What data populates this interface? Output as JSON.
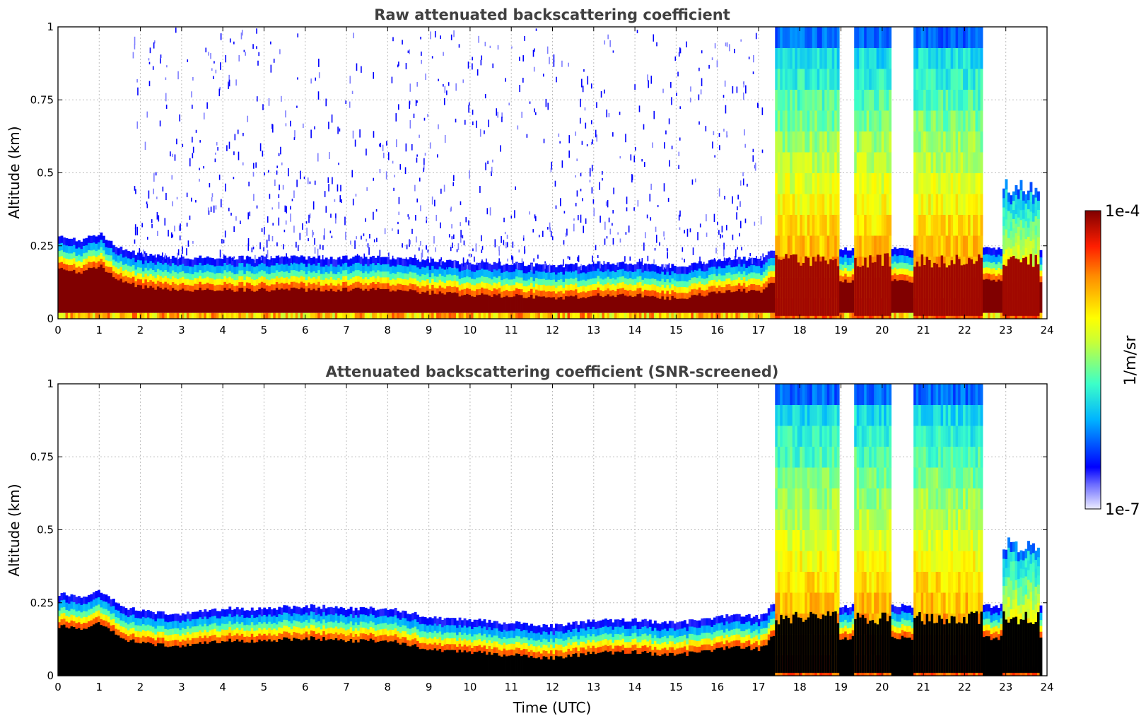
{
  "colors": {
    "scale": [
      "#ececff",
      "#0000ff",
      "#00c8ff",
      "#7dff7a",
      "#ffff00",
      "#ff7f00",
      "#e00000",
      "#800000"
    ],
    "masked": "#000000",
    "grid": "#bdbdbd"
  },
  "chart_data": [
    {
      "type": "heatmap",
      "title": "Raw attenuated backscattering coefficient",
      "xlabel": "",
      "ylabel": "Altitude (km)",
      "xlim": [
        0,
        24
      ],
      "ylim": [
        0,
        1
      ],
      "xticks": [
        "0",
        "1",
        "2",
        "3",
        "4",
        "5",
        "6",
        "7",
        "8",
        "9",
        "10",
        "11",
        "12",
        "13",
        "14",
        "15",
        "16",
        "17",
        "18",
        "19",
        "20",
        "21",
        "22",
        "23",
        "24"
      ],
      "yticks": [
        "0",
        "0.25",
        "0.5",
        "0.75",
        "1"
      ],
      "grid": true,
      "colormap": "jet",
      "scale": "log",
      "clim": [
        "1e-7",
        "1e-4"
      ],
      "unit": "1/m/sr",
      "boundary_layer_top_km": {
        "time_utc": [
          0,
          0.5,
          1.0,
          1.5,
          2,
          3,
          4,
          5,
          6,
          7,
          8,
          9,
          10,
          11,
          12,
          13,
          14,
          15,
          16,
          16.5,
          17,
          17.3
        ],
        "altitude_km": [
          0.28,
          0.27,
          0.29,
          0.24,
          0.22,
          0.21,
          0.21,
          0.21,
          0.21,
          0.21,
          0.21,
          0.2,
          0.19,
          0.19,
          0.18,
          0.19,
          0.19,
          0.18,
          0.2,
          0.21,
          0.2,
          0.24
        ]
      },
      "cloud_columns": [
        {
          "time_utc": [
            17.4,
            18.9
          ],
          "top_km": 1.0
        },
        {
          "time_utc": [
            19.3,
            20.2
          ],
          "top_km": 1.0
        },
        {
          "time_utc": [
            20.7,
            22.4
          ],
          "top_km": 1.0
        },
        {
          "time_utc": [
            22.9,
            23.8
          ],
          "top_km": 0.45
        }
      ],
      "noise": true
    },
    {
      "type": "heatmap",
      "title": "Attenuated backscattering coefficient (SNR-screened)",
      "xlabel": "Time (UTC)",
      "ylabel": "Altitude (km)",
      "xlim": [
        0,
        24
      ],
      "ylim": [
        0,
        1
      ],
      "xticks": [
        "0",
        "1",
        "2",
        "3",
        "4",
        "5",
        "6",
        "7",
        "8",
        "9",
        "10",
        "11",
        "12",
        "13",
        "14",
        "15",
        "16",
        "17",
        "18",
        "19",
        "20",
        "21",
        "22",
        "23",
        "24"
      ],
      "yticks": [
        "0",
        "0.25",
        "0.5",
        "0.75",
        "1"
      ],
      "grid": true,
      "colormap": "jet",
      "scale": "log",
      "clim": [
        "1e-7",
        "1e-4"
      ],
      "unit": "1/m/sr",
      "boundary_layer_top_km": {
        "time_utc": [
          0,
          0.5,
          1.0,
          1.5,
          2,
          3,
          4,
          5,
          6,
          7,
          8,
          9,
          10,
          11,
          12,
          13,
          14,
          15,
          16,
          16.5,
          17,
          17.3
        ],
        "altitude_km": [
          0.28,
          0.27,
          0.29,
          0.24,
          0.22,
          0.21,
          0.23,
          0.23,
          0.24,
          0.23,
          0.23,
          0.2,
          0.19,
          0.18,
          0.17,
          0.19,
          0.19,
          0.18,
          0.2,
          0.21,
          0.2,
          0.24
        ]
      },
      "cloud_columns": [
        {
          "time_utc": [
            17.4,
            18.9
          ],
          "top_km": 1.0
        },
        {
          "time_utc": [
            19.3,
            20.2
          ],
          "top_km": 1.0
        },
        {
          "time_utc": [
            20.7,
            22.4
          ],
          "top_km": 1.0
        },
        {
          "time_utc": [
            22.9,
            23.8
          ],
          "top_km": 0.45
        }
      ],
      "noise": false
    }
  ],
  "colorbar": {
    "max_label": "1e-4",
    "min_label": "1e-7",
    "label": "1/m/sr"
  }
}
